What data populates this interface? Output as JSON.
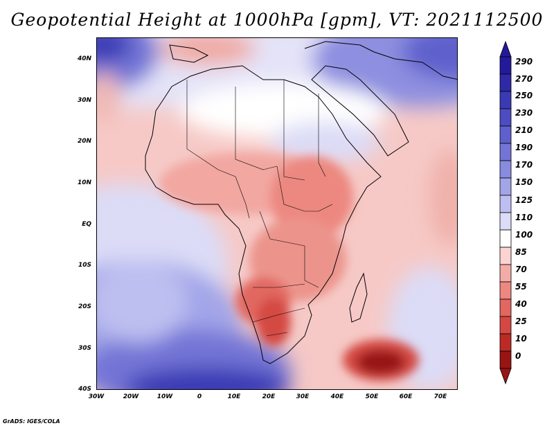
{
  "title": "Geopotential Height at 1000hPa [gpm], VT: 2021112500",
  "credit": "GrADS: IGES/COLA",
  "map": {
    "field": "Geopotential Height",
    "level": "1000hPa",
    "units": "gpm",
    "valid_time": "2021112500",
    "lon_range": [
      "30W",
      "75E"
    ],
    "lat_range": [
      "40S",
      "45N"
    ],
    "x_ticks": [
      "30W",
      "20W",
      "10W",
      "0",
      "10E",
      "20E",
      "30E",
      "40E",
      "50E",
      "60E",
      "70E"
    ],
    "y_ticks": [
      "40N",
      "30N",
      "20N",
      "10N",
      "EQ",
      "10S",
      "20S",
      "30S",
      "40S"
    ]
  },
  "colorbar": {
    "labels": [
      "290",
      "270",
      "250",
      "230",
      "210",
      "190",
      "170",
      "150",
      "125",
      "110",
      "100",
      "85",
      "70",
      "55",
      "40",
      "25",
      "10",
      "0"
    ],
    "colors": [
      "#231a9b",
      "#2f29a8",
      "#3b3ab5",
      "#4d4cc2",
      "#5f60cc",
      "#7374d6",
      "#898bdf",
      "#a2a5e8",
      "#bdbff0",
      "#dcdcf7",
      "#ffffff",
      "#fbd4d2",
      "#f4aba6",
      "#ec8880",
      "#e16760",
      "#d44843",
      "#bc2a26",
      "#991414"
    ]
  }
}
